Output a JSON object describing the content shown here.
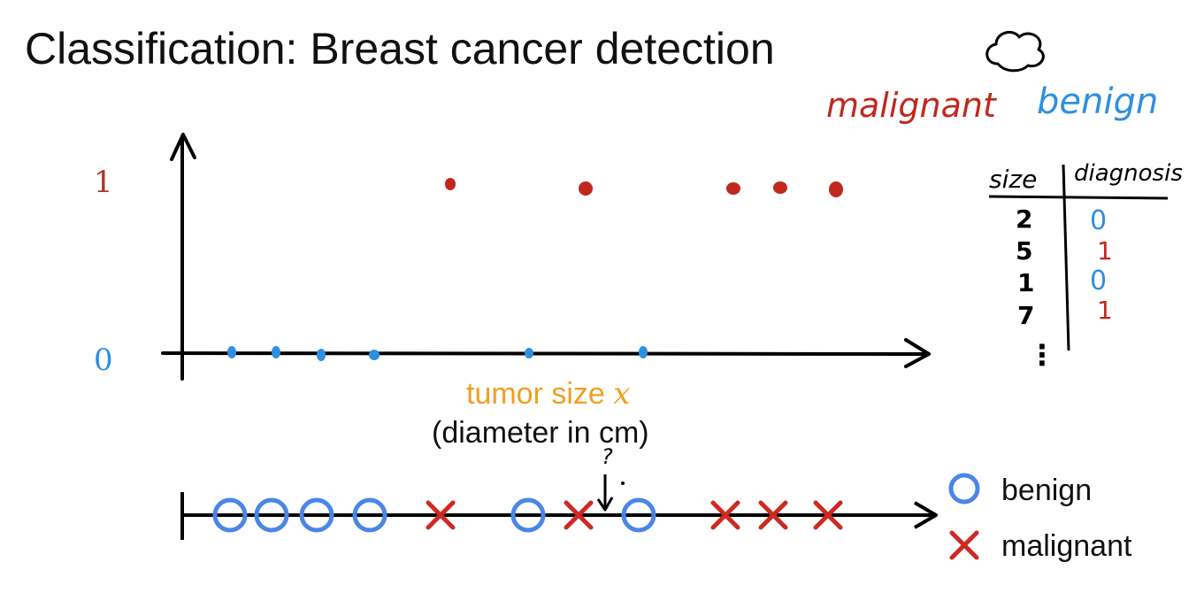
{
  "slide": {
    "title": "Classification: Breast cancer detection",
    "legend_top": {
      "malignant": "malignant",
      "benign": "benign"
    },
    "y_tick_high": "1",
    "y_tick_low": "0",
    "x_label_main": "tumor size ",
    "x_label_var": "x",
    "x_label_sub": "(diameter in cm)",
    "question_mark": "?",
    "legend_bottom": {
      "benign": "benign",
      "malignant": "malignant"
    }
  },
  "table": {
    "headers": [
      "size",
      "diagnosis"
    ],
    "rows": [
      {
        "size": "2",
        "diagnosis": "0"
      },
      {
        "size": "5",
        "diagnosis": "1"
      },
      {
        "size": "1",
        "diagnosis": "0"
      },
      {
        "size": "7",
        "diagnosis": "1"
      }
    ],
    "continuation": "⋮"
  },
  "colors": {
    "malignant": "#c0281e",
    "benign": "#2f8fe0",
    "axis": "#000000",
    "xlabel": "#f0a020",
    "bottom_benign": "#4a86e8",
    "bottom_malignant": "#cc2a22"
  },
  "icons": {
    "cloud": "cloud-icon"
  },
  "chart_data": {
    "type": "scatter",
    "y_categories": [
      "0",
      "1"
    ],
    "benign_y0_points": 6,
    "malignant_y1_points": 5,
    "number_line": [
      "benign",
      "benign",
      "benign",
      "benign",
      "malignant",
      "benign",
      "malignant",
      "benign",
      "malignant",
      "malignant",
      "malignant"
    ]
  }
}
